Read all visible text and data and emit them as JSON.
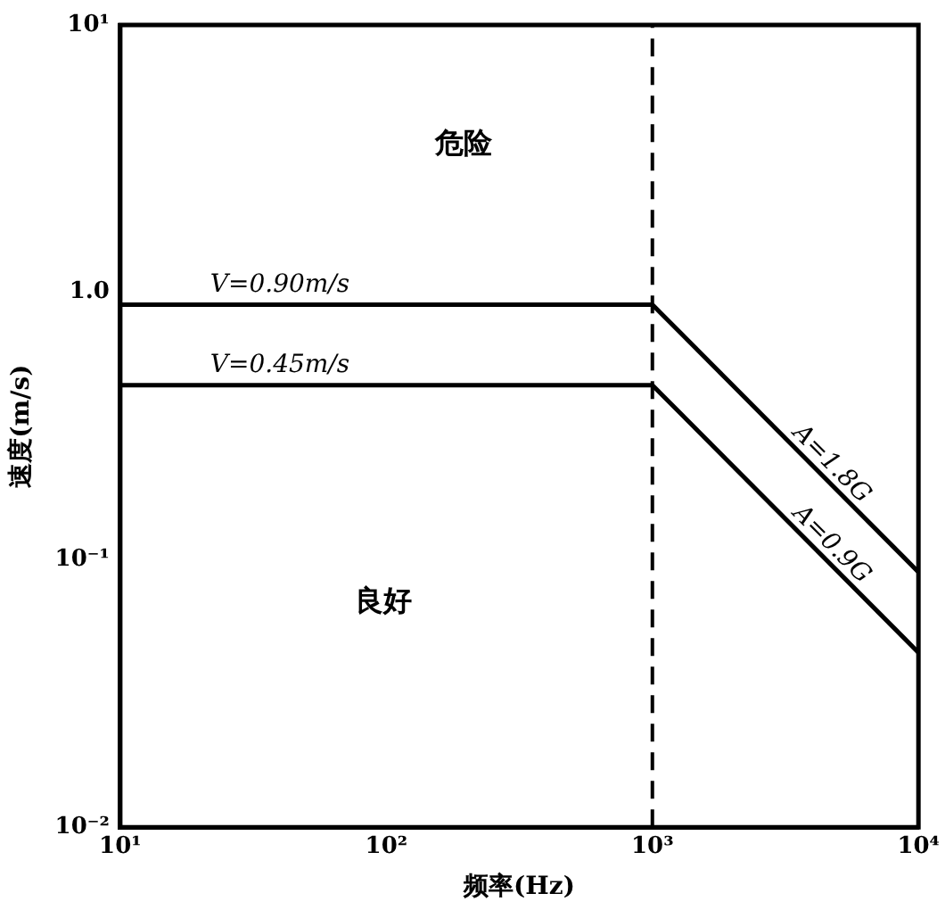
{
  "chart_data": {
    "type": "line",
    "xlabel": "频率(Hz)",
    "ylabel": "速度(m/s)",
    "log": "xy",
    "grid": false,
    "legend": false,
    "marker": "none",
    "line_style": "solid",
    "xlim": [
      10,
      10000
    ],
    "ylim": [
      0.01,
      10
    ],
    "xticks": [
      {
        "value": 10,
        "label": "10¹"
      },
      {
        "value": 100,
        "label": "10²"
      },
      {
        "value": 1000,
        "label": "10³"
      },
      {
        "value": 10000,
        "label": "10⁴"
      }
    ],
    "yticks": [
      {
        "value": 0.01,
        "label": "10⁻²"
      },
      {
        "value": 0.1,
        "label": "10⁻¹"
      },
      {
        "value": 1,
        "label": "1.0"
      },
      {
        "value": 10,
        "label": "10¹"
      }
    ],
    "series": [
      {
        "name": "V=0.90m/s",
        "color": "#000000",
        "x": [
          10,
          1000
        ],
        "values": [
          0.9,
          0.9
        ]
      },
      {
        "name": "V=0.45m/s",
        "color": "#000000",
        "x": [
          10,
          1000
        ],
        "values": [
          0.45,
          0.45
        ]
      },
      {
        "name": "A=1.8G",
        "color": "#000000",
        "x": [
          1000,
          10000
        ],
        "values": [
          0.9,
          0.09
        ]
      },
      {
        "name": "A=0.9G",
        "color": "#000000",
        "x": [
          1000,
          10000
        ],
        "values": [
          0.45,
          0.045
        ]
      }
    ],
    "ref_lines": [
      {
        "axis": "x",
        "value": 1000,
        "line_style": "dashed",
        "color": "#000000"
      }
    ],
    "annotations": [
      "危险",
      "良好"
    ]
  }
}
